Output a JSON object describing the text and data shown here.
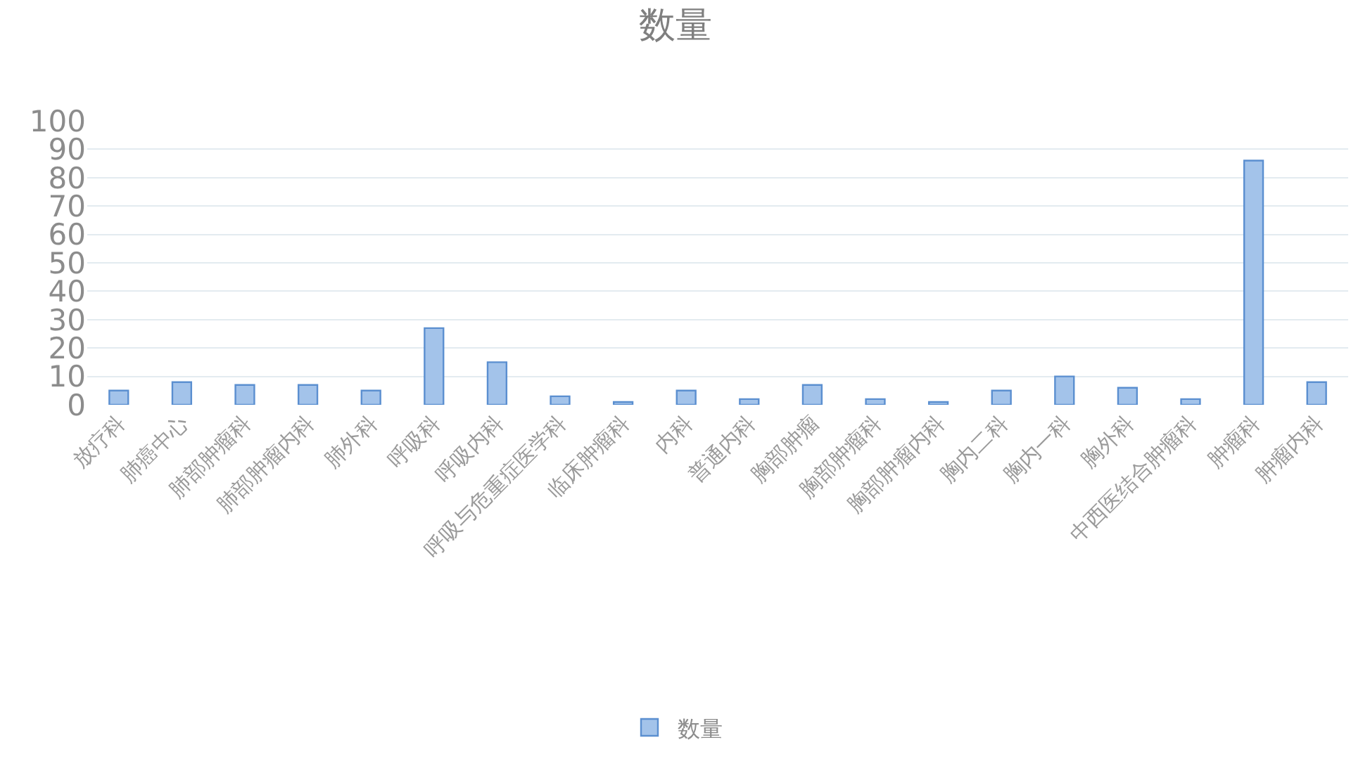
{
  "chart_data": {
    "type": "bar",
    "title": "数量",
    "categories": [
      "放疗科",
      "肺癌中心",
      "肺部肿瘤科",
      "肺部肿瘤内科",
      "肺外科",
      "呼吸科",
      "呼吸内科",
      "呼吸与危重症医学科",
      "临床肿瘤科",
      "内科",
      "普通内科",
      "胸部肿瘤",
      "胸部肿瘤科",
      "胸部肿瘤内科",
      "胸内二科",
      "胸内一科",
      "胸外科",
      "中西医结合肿瘤科",
      "肿瘤科",
      "肿瘤内科"
    ],
    "series": [
      {
        "name": "数量",
        "color": "#a3c3ea",
        "values": [
          5,
          8,
          7,
          7,
          5,
          27,
          15,
          3,
          1,
          5,
          2,
          7,
          2,
          1,
          5,
          10,
          6,
          2,
          86,
          8
        ]
      }
    ],
    "ylim": [
      0,
      100
    ],
    "yticks": [
      0,
      10,
      20,
      30,
      40,
      50,
      60,
      70,
      80,
      90,
      100
    ],
    "grid": "y",
    "legend": "bottom"
  }
}
